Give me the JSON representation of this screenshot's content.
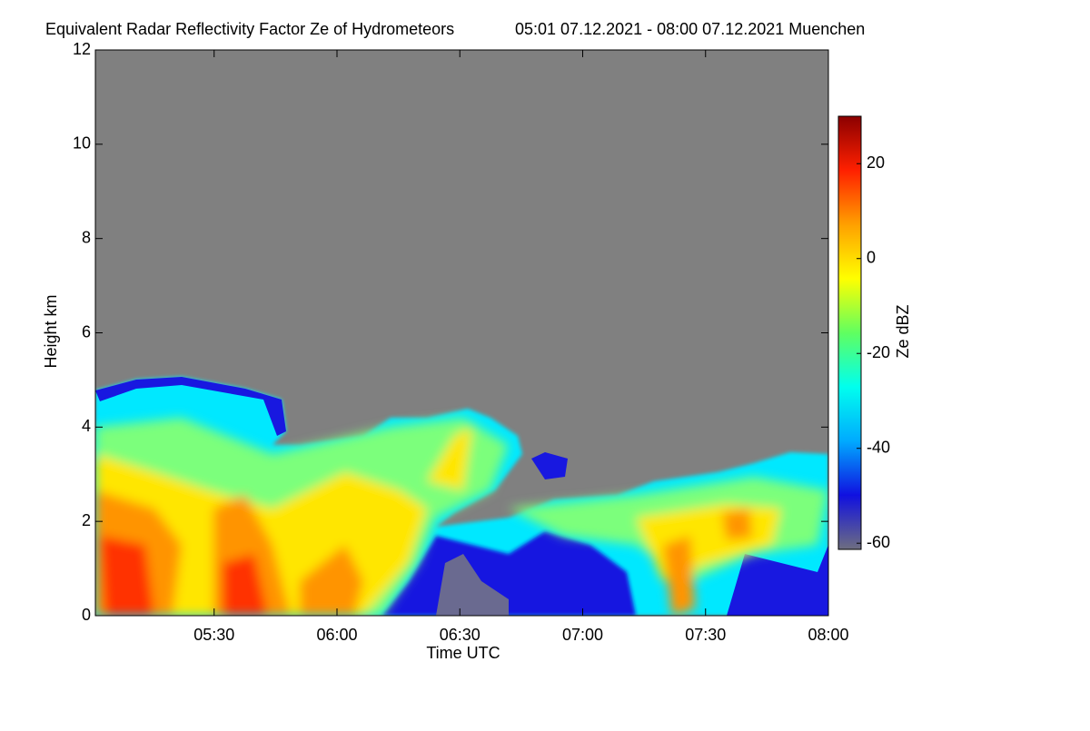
{
  "chart_data": {
    "type": "heatmap",
    "title": "Equivalent Radar Reflectivity Factor Ze of Hydrometeors",
    "subtitle": "05:01 07.12.2021 - 08:00 07.12.2021 Muenchen",
    "xlabel": "Time UTC",
    "ylabel": "Height km",
    "colorbar_label": "Ze dBZ",
    "xlim": [
      5.0167,
      8.0
    ],
    "xticks": [
      {
        "value": 5.5,
        "label": "05:30"
      },
      {
        "value": 6.0,
        "label": "06:00"
      },
      {
        "value": 6.5,
        "label": "06:30"
      },
      {
        "value": 7.0,
        "label": "07:00"
      },
      {
        "value": 7.5,
        "label": "07:30"
      },
      {
        "value": 8.0,
        "label": "08:00"
      }
    ],
    "ylim": [
      0,
      12
    ],
    "yticks": [
      0,
      2,
      4,
      6,
      8,
      10,
      12
    ],
    "clim": [
      -61.3,
      30
    ],
    "cticks": [
      -60,
      -40,
      -20,
      0,
      20
    ],
    "colormap": [
      "#6e6e80",
      "#1010e0",
      "#00aaff",
      "#00ffee",
      "#60ff60",
      "#ffff00",
      "#ffa000",
      "#ff2000",
      "#8b0000"
    ]
  }
}
